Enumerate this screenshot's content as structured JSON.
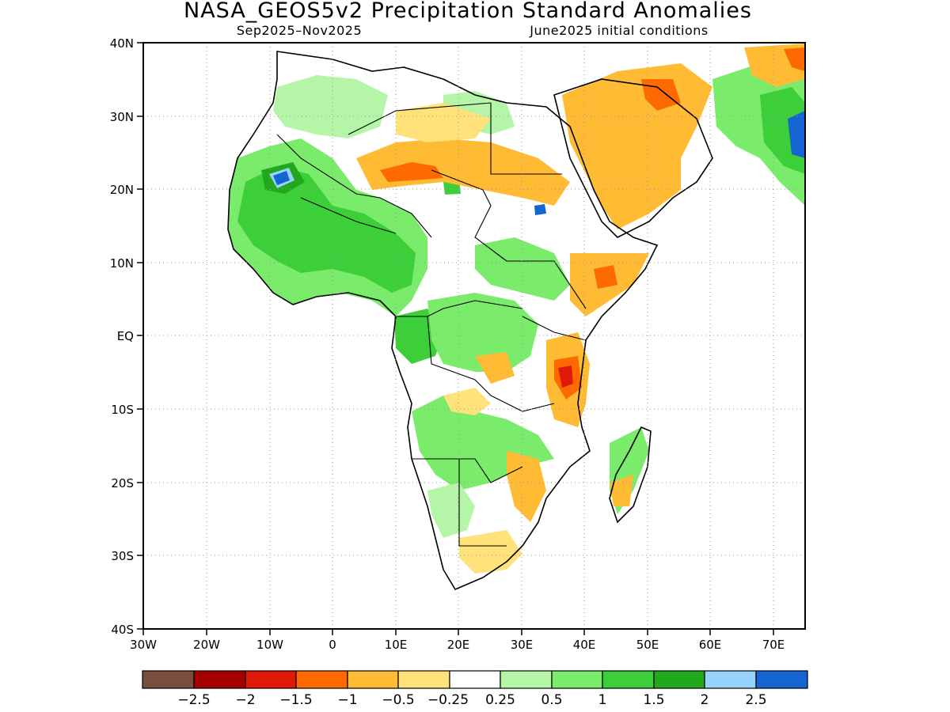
{
  "title": "NASA_GEOS5v2 Precipitation Standard Anomalies",
  "subtitle_left": "Sep2025–Nov2025",
  "subtitle_right": "June2025 initial conditions",
  "axes": {
    "lat_ticks": [
      "40N",
      "30N",
      "20N",
      "10N",
      "EQ",
      "10S",
      "20S",
      "30S",
      "40S"
    ],
    "lon_ticks": [
      "30W",
      "20W",
      "10W",
      "0",
      "10E",
      "20E",
      "30E",
      "40E",
      "50E",
      "60E",
      "70E"
    ],
    "lat_range": [
      -40,
      40
    ],
    "lon_range": [
      -30,
      75
    ],
    "grid": "dotted"
  },
  "colorbar": {
    "labels": [
      "−2.5",
      "−2",
      "−1.5",
      "−1",
      "−0.5",
      "−0.25",
      "0.25",
      "0.5",
      "1",
      "1.5",
      "2",
      "2.5"
    ],
    "colors": [
      "#7a4e3f",
      "#a50000",
      "#e01a0a",
      "#ff6a00",
      "#ffbb33",
      "#ffe27a",
      "#ffffff",
      "#b4f5a8",
      "#7aeb6a",
      "#3ccf3a",
      "#21a81c",
      "#96d2fa",
      "#1464d2"
    ]
  },
  "legend_colors": {
    "dry_strong": "#e01a0a",
    "dry_moderate": "#ff6a00",
    "dry_weak": "#ffbb33",
    "dry_slight": "#ffe27a",
    "wet_slight": "#b4f5a8",
    "wet_weak": "#7aeb6a",
    "wet_moderate": "#3ccf3a",
    "wet_high": "#96d2fa",
    "wet_strong": "#1464d2"
  }
}
